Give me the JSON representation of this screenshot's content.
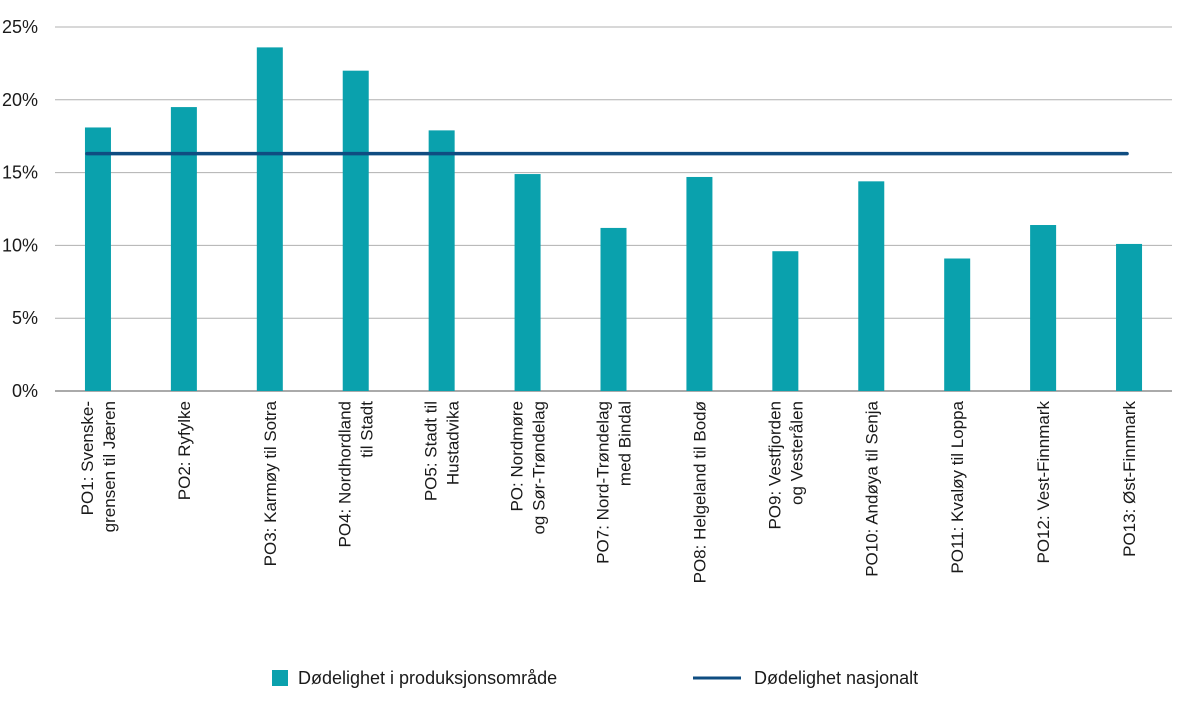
{
  "chart_data": {
    "type": "bar",
    "categories": [
      [
        "PO1: Svenske-",
        "grensen til Jæren"
      ],
      [
        "PO2: Ryfylke"
      ],
      [
        "PO3: Karmøy til Sotra"
      ],
      [
        "PO4: Nordhordland",
        "til Stadt"
      ],
      [
        "PO5: Stadt til",
        "Hustadvika"
      ],
      [
        "PO: Nordmøre",
        "og Sør-Trøndelag"
      ],
      [
        "PO7: Nord-Trøndelag",
        "med Bindal"
      ],
      [
        "PO8: Helgeland til Bodø"
      ],
      [
        "PO9: Vestfjorden",
        "og Vesterålen"
      ],
      [
        "PO10: Andøya til Senja"
      ],
      [
        "PO11: Kvaløy til Loppa"
      ],
      [
        "PO12: Vest-Finnmark"
      ],
      [
        "PO13: Øst-Finnmark"
      ]
    ],
    "series": [
      {
        "name": "Dødelighet i produksjonsområde",
        "type": "bar",
        "color": "#0aa1ad",
        "values": [
          18.1,
          19.5,
          23.6,
          22.0,
          17.9,
          14.9,
          11.2,
          14.7,
          9.6,
          14.4,
          9.1,
          11.4,
          10.1
        ]
      },
      {
        "name": "Dødelighet nasjonalt",
        "type": "line",
        "color": "#0f4d81",
        "value": 16.3
      }
    ],
    "ylim": [
      0,
      25
    ],
    "yticks": [
      "0%",
      "5%",
      "10%",
      "15%",
      "20%",
      "25%"
    ],
    "ytick_values": [
      0,
      5,
      10,
      15,
      20,
      25
    ],
    "grid": true,
    "legend_position": "bottom"
  }
}
